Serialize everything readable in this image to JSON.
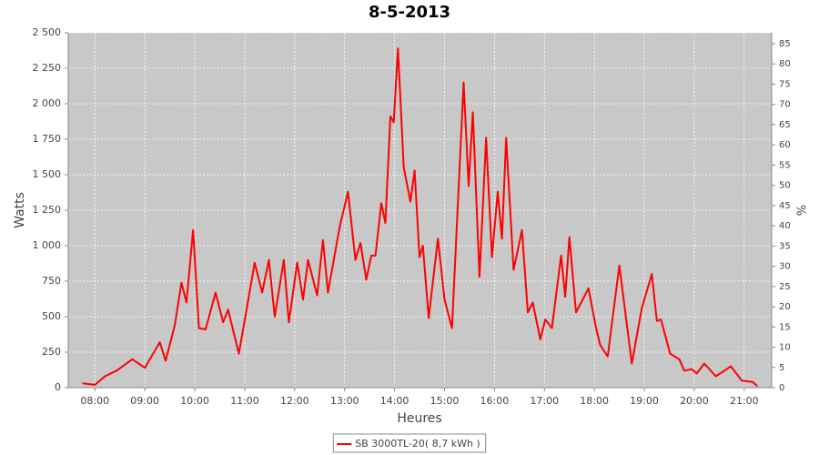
{
  "chart_data": {
    "type": "line",
    "title": "8-5-2013",
    "xlabel": "Heures",
    "ylabel": "Watts",
    "y2label": "%",
    "x": [
      "07:45",
      "08:00",
      "08:12",
      "08:26",
      "08:45",
      "09:00",
      "09:18",
      "09:25",
      "09:36",
      "09:44",
      "09:50",
      "09:58",
      "10:05",
      "10:13",
      "10:25",
      "10:34",
      "10:40",
      "10:53",
      "11:12",
      "11:21",
      "11:29",
      "11:36",
      "11:47",
      "11:53",
      "12:03",
      "12:10",
      "12:16",
      "12:27",
      "12:34",
      "12:40",
      "12:54",
      "13:04",
      "13:13",
      "13:19",
      "13:26",
      "13:32",
      "13:37",
      "13:44",
      "13:49",
      "13:55",
      "13:59",
      "14:04",
      "14:11",
      "14:19",
      "14:24",
      "14:30",
      "14:34",
      "14:41",
      "14:52",
      "15:00",
      "15:09",
      "15:23",
      "15:29",
      "15:34",
      "15:42",
      "15:50",
      "15:57",
      "16:04",
      "16:09",
      "16:14",
      "16:23",
      "16:33",
      "16:40",
      "16:46",
      "16:55",
      "17:01",
      "17:09",
      "17:20",
      "17:25",
      "17:30",
      "17:38",
      "17:46",
      "17:53",
      "18:02",
      "18:07",
      "18:16",
      "18:30",
      "18:45",
      "18:57",
      "19:09",
      "19:15",
      "19:20",
      "19:31",
      "19:42",
      "19:48",
      "19:57",
      "20:03",
      "20:12",
      "20:26",
      "20:44",
      "20:57",
      "21:10",
      "21:16"
    ],
    "series": [
      {
        "name": "SB 3000TL-20( 8,7 kWh )",
        "color": "#ff0000",
        "values": [
          30,
          20,
          80,
          120,
          200,
          140,
          320,
          190,
          440,
          740,
          600,
          1110,
          420,
          410,
          670,
          460,
          550,
          240,
          880,
          670,
          900,
          500,
          900,
          460,
          880,
          620,
          900,
          650,
          1040,
          670,
          1130,
          1380,
          900,
          1020,
          760,
          930,
          930,
          1300,
          1160,
          1910,
          1870,
          2390,
          1550,
          1310,
          1530,
          920,
          1000,
          490,
          1050,
          620,
          420,
          2150,
          1420,
          1940,
          780,
          1760,
          920,
          1380,
          1050,
          1760,
          830,
          1110,
          530,
          600,
          340,
          480,
          420,
          930,
          640,
          1060,
          530,
          620,
          700,
          420,
          300,
          220,
          860,
          170,
          560,
          800,
          470,
          480,
          240,
          200,
          120,
          130,
          100,
          170,
          80,
          150,
          50,
          40,
          10
        ]
      }
    ],
    "xlim": [
      "07:28",
      "21:33"
    ],
    "xticks": [
      "08:00",
      "09:00",
      "10:00",
      "11:00",
      "12:00",
      "13:00",
      "14:00",
      "15:00",
      "16:00",
      "17:00",
      "18:00",
      "19:00",
      "20:00",
      "21:00"
    ],
    "ylim": [
      0,
      2500
    ],
    "yticks": [
      0,
      250,
      500,
      750,
      {
        "value": 1000,
        "label": "1 000"
      },
      {
        "value": 1250,
        "label": "1 250"
      },
      {
        "value": 1500,
        "label": "1 500"
      },
      {
        "value": 1750,
        "label": "1 750"
      },
      {
        "value": 2000,
        "label": "2 000"
      },
      {
        "value": 2250,
        "label": "2 250"
      },
      {
        "value": 2500,
        "label": "2 500"
      }
    ],
    "y2lim": [
      0,
      87.7
    ],
    "y2ticks": [
      0,
      5,
      10,
      15,
      20,
      25,
      30,
      35,
      40,
      45,
      50,
      55,
      60,
      65,
      70,
      75,
      80,
      85
    ],
    "grid": true
  }
}
